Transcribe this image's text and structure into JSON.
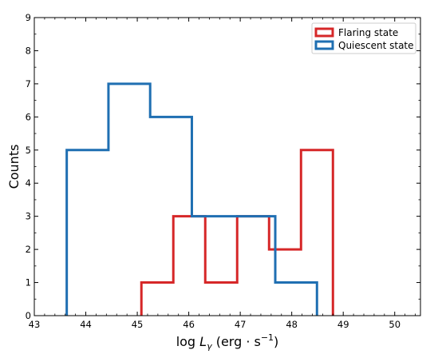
{
  "chart_data": {
    "type": "histogram",
    "xlabel": "log L_γ (erg · s⁻¹)",
    "xlabel_parts": {
      "base": "log ",
      "var": "L",
      "sub": "γ",
      "unit_open": " (erg · s",
      "sup": "−1",
      "unit_close": ")"
    },
    "ylabel": "Counts",
    "xlim": [
      43,
      50.5
    ],
    "ylim": [
      0,
      9
    ],
    "x_ticks": [
      "43",
      "44",
      "45",
      "46",
      "47",
      "48",
      "49",
      "50"
    ],
    "y_ticks": [
      "0",
      "1",
      "2",
      "3",
      "4",
      "5",
      "6",
      "7",
      "8",
      "9"
    ],
    "legend_position": "top-right",
    "series": [
      {
        "name": "Flaring state",
        "color": "#d62728",
        "edges": [
          45.08,
          45.7,
          46.32,
          46.94,
          47.56,
          48.18,
          48.8
        ],
        "counts": [
          1,
          3,
          1,
          3,
          2,
          5
        ]
      },
      {
        "name": "Quiescent state",
        "color": "#1f6fb2",
        "edges": [
          43.63,
          44.44,
          45.25,
          46.06,
          46.87,
          47.68,
          48.49
        ],
        "counts": [
          5,
          7,
          6,
          3,
          3,
          1
        ]
      }
    ]
  }
}
